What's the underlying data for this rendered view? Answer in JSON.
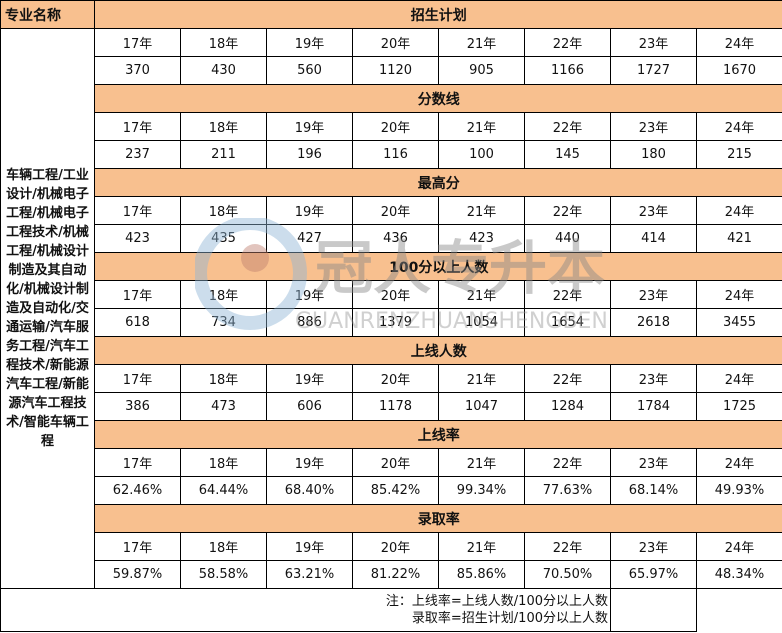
{
  "major_header": "专业名称",
  "major_names": "车辆工程/工业设计/机械电子工程/机械电子工程技术/机械工程/机械设计制造及其自动化/机械设计制造及自动化/交通运输/汽车服务工程/汽车工程技术/新能源汽车工程/新能源汽车工程技术/智能车辆工程",
  "years": [
    "17年",
    "18年",
    "19年",
    "20年",
    "21年",
    "22年",
    "23年",
    "24年"
  ],
  "sections": [
    {
      "title": "招生计划",
      "values": [
        "370",
        "430",
        "560",
        "1120",
        "905",
        "1166",
        "1727",
        "1670"
      ]
    },
    {
      "title": "分数线",
      "values": [
        "237",
        "211",
        "196",
        "116",
        "100",
        "145",
        "180",
        "215"
      ]
    },
    {
      "title": "最高分",
      "values": [
        "423",
        "435",
        "427",
        "436",
        "423",
        "440",
        "414",
        "421"
      ]
    },
    {
      "title": "100分以上人数",
      "values": [
        "618",
        "734",
        "886",
        "1379",
        "1054",
        "1654",
        "2618",
        "3455"
      ]
    },
    {
      "title": "上线人数",
      "values": [
        "386",
        "473",
        "606",
        "1178",
        "1047",
        "1284",
        "1784",
        "1725"
      ]
    },
    {
      "title": "上线率",
      "values": [
        "62.46%",
        "64.44%",
        "68.40%",
        "85.42%",
        "99.34%",
        "77.63%",
        "68.14%",
        "49.93%"
      ]
    },
    {
      "title": "录取率",
      "values": [
        "59.87%",
        "58.58%",
        "63.21%",
        "81.22%",
        "85.86%",
        "70.50%",
        "65.97%",
        "48.34%"
      ]
    }
  ],
  "note": {
    "line1": "注：上线率=上线人数/100分以上人数",
    "line2": "录取率=招生计划/100分以上人数"
  },
  "watermark": {
    "cn": "冠人专升本",
    "en": "GUANRENZHUANSHENGBEN"
  },
  "colors": {
    "header_band": "#f8c08f"
  }
}
